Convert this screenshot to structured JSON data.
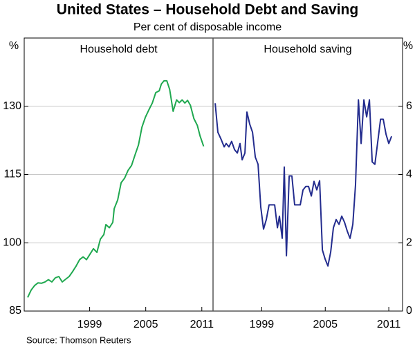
{
  "title": "United States – Household Debt and Saving",
  "subtitle": "Per cent of disposable income",
  "source": "Source: Thomson Reuters",
  "chart_data": [
    {
      "type": "line",
      "title": "Household debt",
      "y_label": "%",
      "color": "#1fa84f",
      "grid": true,
      "xlim": [
        1992,
        2012.2
      ],
      "xticks": [
        1999,
        2005,
        2011
      ],
      "ylim": [
        85,
        145
      ],
      "yticks": [
        85,
        100,
        115,
        130
      ],
      "x": [
        1992.37,
        1992.74,
        1993.11,
        1993.48,
        1993.85,
        1994.22,
        1994.59,
        1994.96,
        1995.33,
        1995.7,
        1996.07,
        1996.44,
        1996.81,
        1997.19,
        1997.56,
        1997.93,
        1998.3,
        1998.67,
        1999.04,
        1999.41,
        1999.78,
        2000.15,
        2000.52,
        2000.74,
        2001.11,
        2001.48,
        2001.63,
        2002.0,
        2002.37,
        2002.74,
        2003.11,
        2003.48,
        2003.85,
        2004.22,
        2004.59,
        2004.96,
        2005.33,
        2005.7,
        2006.07,
        2006.44,
        2006.67,
        2006.96,
        2007.26,
        2007.56,
        2007.93,
        2008.3,
        2008.59,
        2008.89,
        2009.19,
        2009.48,
        2009.78,
        2010.15,
        2010.52,
        2010.81,
        2011.19
      ],
      "values": [
        88.0,
        89.6,
        90.6,
        91.2,
        91.1,
        91.4,
        91.9,
        91.4,
        92.3,
        92.6,
        91.4,
        92.0,
        92.6,
        93.7,
        94.9,
        96.3,
        96.9,
        96.3,
        97.5,
        98.7,
        97.9,
        100.8,
        101.8,
        104.0,
        103.3,
        104.5,
        107.5,
        109.4,
        113.2,
        114.2,
        115.9,
        117.0,
        119.3,
        121.5,
        125.4,
        127.6,
        129.2,
        130.7,
        133.0,
        133.4,
        134.9,
        135.6,
        135.6,
        133.7,
        128.9,
        131.4,
        130.8,
        131.4,
        130.7,
        131.3,
        130.2,
        127.3,
        125.8,
        123.5,
        121.2
      ]
    },
    {
      "type": "line",
      "title": "Household saving",
      "y_label": "%",
      "color": "#232c8e",
      "grid": true,
      "xlim": [
        1994.4,
        2012.3
      ],
      "xticks": [
        1999,
        2005,
        2011
      ],
      "ylim": [
        0,
        8
      ],
      "yticks": [
        0,
        2,
        4,
        6
      ],
      "x": [
        1994.6,
        1994.86,
        1995.18,
        1995.45,
        1995.64,
        1995.9,
        1996.16,
        1996.43,
        1996.69,
        1996.95,
        1997.15,
        1997.41,
        1997.6,
        1997.86,
        1998.13,
        1998.39,
        1998.65,
        1998.91,
        1999.17,
        1999.43,
        1999.69,
        1999.96,
        2000.22,
        2000.48,
        2000.67,
        2000.93,
        2001.13,
        2001.33,
        2001.59,
        2001.85,
        2002.11,
        2002.37,
        2002.64,
        2002.9,
        2003.16,
        2003.42,
        2003.68,
        2003.94,
        2004.2,
        2004.47,
        2004.73,
        2004.99,
        2005.25,
        2005.51,
        2005.77,
        2006.03,
        2006.3,
        2006.56,
        2006.82,
        2007.08,
        2007.34,
        2007.6,
        2007.86,
        2008.13,
        2008.39,
        2008.65,
        2008.91,
        2009.17,
        2009.43,
        2009.69,
        2009.96,
        2010.22,
        2010.48,
        2010.74,
        2011.0,
        2011.26
      ],
      "values": [
        6.09,
        5.24,
        5.02,
        4.81,
        4.91,
        4.81,
        4.97,
        4.73,
        4.63,
        4.91,
        4.43,
        4.63,
        5.83,
        5.48,
        5.24,
        4.51,
        4.3,
        3.05,
        2.4,
        2.68,
        3.11,
        3.11,
        3.11,
        2.44,
        2.78,
        2.13,
        4.22,
        1.62,
        3.96,
        3.96,
        3.11,
        3.11,
        3.11,
        3.55,
        3.65,
        3.65,
        3.37,
        3.8,
        3.55,
        3.82,
        1.79,
        1.52,
        1.32,
        1.73,
        2.44,
        2.68,
        2.54,
        2.78,
        2.6,
        2.34,
        2.13,
        2.54,
        3.7,
        6.19,
        4.91,
        6.19,
        5.69,
        6.19,
        4.37,
        4.3,
        4.97,
        5.62,
        5.62,
        5.18,
        4.91,
        5.12
      ]
    }
  ]
}
